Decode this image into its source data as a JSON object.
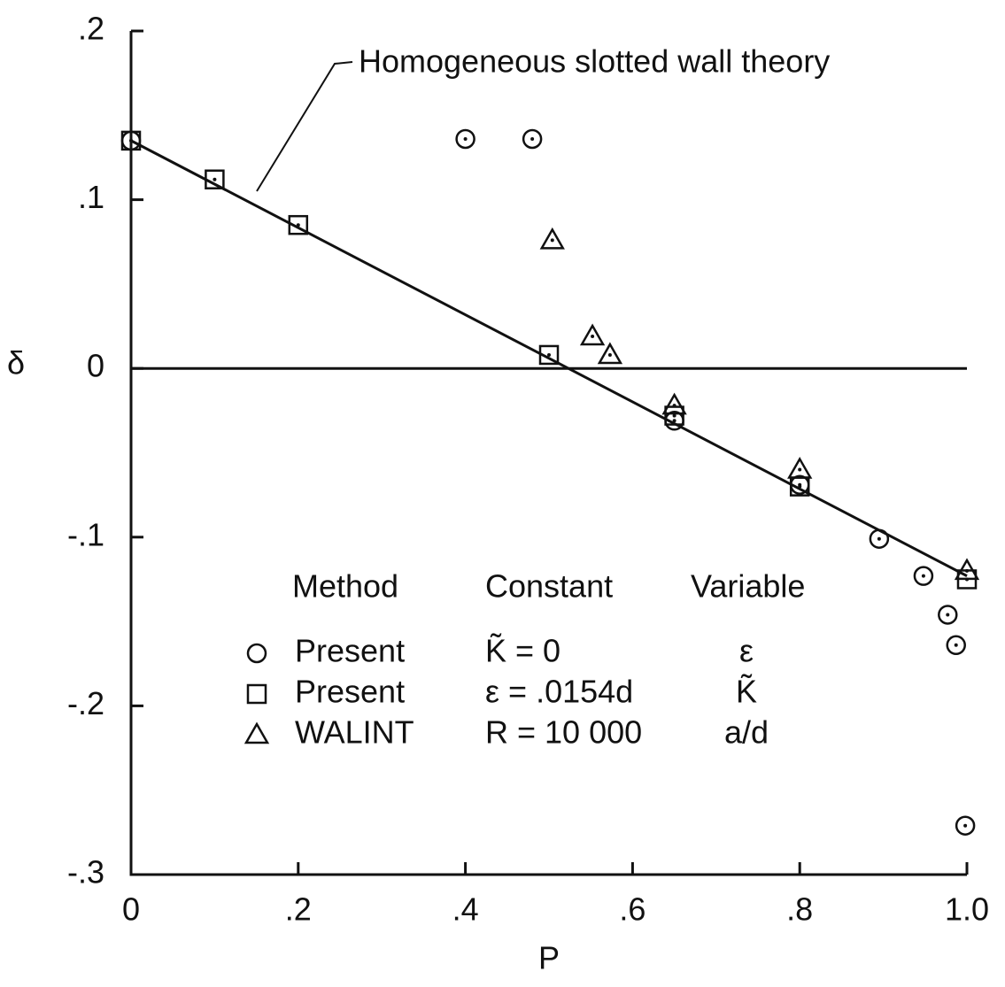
{
  "chart_data": {
    "type": "scatter",
    "annotation": "Homogeneous slotted wall theory",
    "xlabel": "P",
    "ylabel": "δ",
    "xlim": [
      0,
      1.0
    ],
    "ylim": [
      -0.3,
      0.2
    ],
    "xticks": [
      0,
      {
        "value": 0.2,
        "label": ".2"
      },
      {
        "value": 0.4,
        "label": ".4"
      },
      {
        "value": 0.6,
        "label": ".6"
      },
      {
        "value": 0.8,
        "label": ".8"
      },
      {
        "value": 1.0,
        "label": "1.0"
      }
    ],
    "yticks": [
      {
        "value": 0.2,
        "label": ".2"
      },
      {
        "value": 0.1,
        "label": ".1"
      },
      0,
      {
        "value": -0.1,
        "label": "-.1"
      },
      {
        "value": -0.2,
        "label": "-.2"
      },
      {
        "value": -0.3,
        "label": "-.3"
      }
    ],
    "reference_line_y": 0,
    "theory_line": {
      "x": [
        0,
        1.0
      ],
      "values": [
        0.135,
        -0.123
      ],
      "color": "#111111"
    },
    "legend_headers": [
      "Method",
      "Constant",
      "Variable"
    ],
    "series": [
      {
        "name": "Present",
        "constant": "K̃ = 0",
        "variable": "ε",
        "marker": "circle",
        "color": "#111111",
        "x": [
          0,
          0.4,
          0.48,
          0.65,
          0.8,
          0.895,
          0.948,
          0.977,
          0.987,
          0.998
        ],
        "values": [
          0.135,
          0.136,
          0.136,
          -0.031,
          -0.069,
          -0.101,
          -0.123,
          -0.146,
          -0.164,
          -0.271
        ]
      },
      {
        "name": "Present",
        "constant": "ε = .0154d",
        "variable": "K̃",
        "marker": "square",
        "color": "#111111",
        "x": [
          0,
          0.1,
          0.2,
          0.5,
          0.65,
          0.8,
          1.0
        ],
        "values": [
          0.135,
          0.112,
          0.085,
          0.008,
          -0.028,
          -0.07,
          -0.125
        ]
      },
      {
        "name": "WALINT",
        "constant": "R = 10 000",
        "variable": "a/d",
        "marker": "triangle",
        "color": "#111111",
        "x": [
          0.504,
          0.552,
          0.573,
          0.65,
          0.8,
          1.0
        ],
        "values": [
          0.076,
          0.019,
          0.008,
          -0.022,
          -0.06,
          -0.12
        ]
      }
    ]
  }
}
